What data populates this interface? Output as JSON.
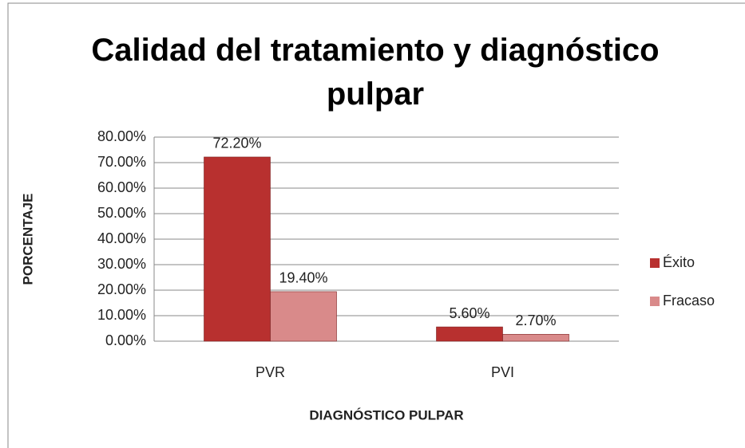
{
  "chart_data": {
    "type": "bar",
    "title": "Calidad del tratamiento y diagnóstico pulpar",
    "x_label": "DIAGNÓSTICO PULPAR",
    "y_label": "PORCENTAJE",
    "categories": [
      "PVR",
      "PVI"
    ],
    "series": [
      {
        "name": "Éxito",
        "color": "#b8302f",
        "values": [
          72.2,
          5.6
        ],
        "value_labels": [
          "72.20%",
          "5.60%"
        ]
      },
      {
        "name": "Fracaso",
        "color": "#d98a8a",
        "values": [
          19.4,
          2.7
        ],
        "value_labels": [
          "19.40%",
          "2.70%"
        ]
      }
    ],
    "ylim": [
      0,
      80
    ],
    "yticks": [
      {
        "value": 0,
        "label": "0.00%"
      },
      {
        "value": 10,
        "label": "10.00%"
      },
      {
        "value": 20,
        "label": "20.00%"
      },
      {
        "value": 30,
        "label": "30.00%"
      },
      {
        "value": 40,
        "label": "40.00%"
      },
      {
        "value": 50,
        "label": "50.00%"
      },
      {
        "value": 60,
        "label": "60.00%"
      },
      {
        "value": 70,
        "label": "70.00%"
      },
      {
        "value": 80,
        "label": "80.00%"
      }
    ],
    "grid": true,
    "legend": "right"
  }
}
